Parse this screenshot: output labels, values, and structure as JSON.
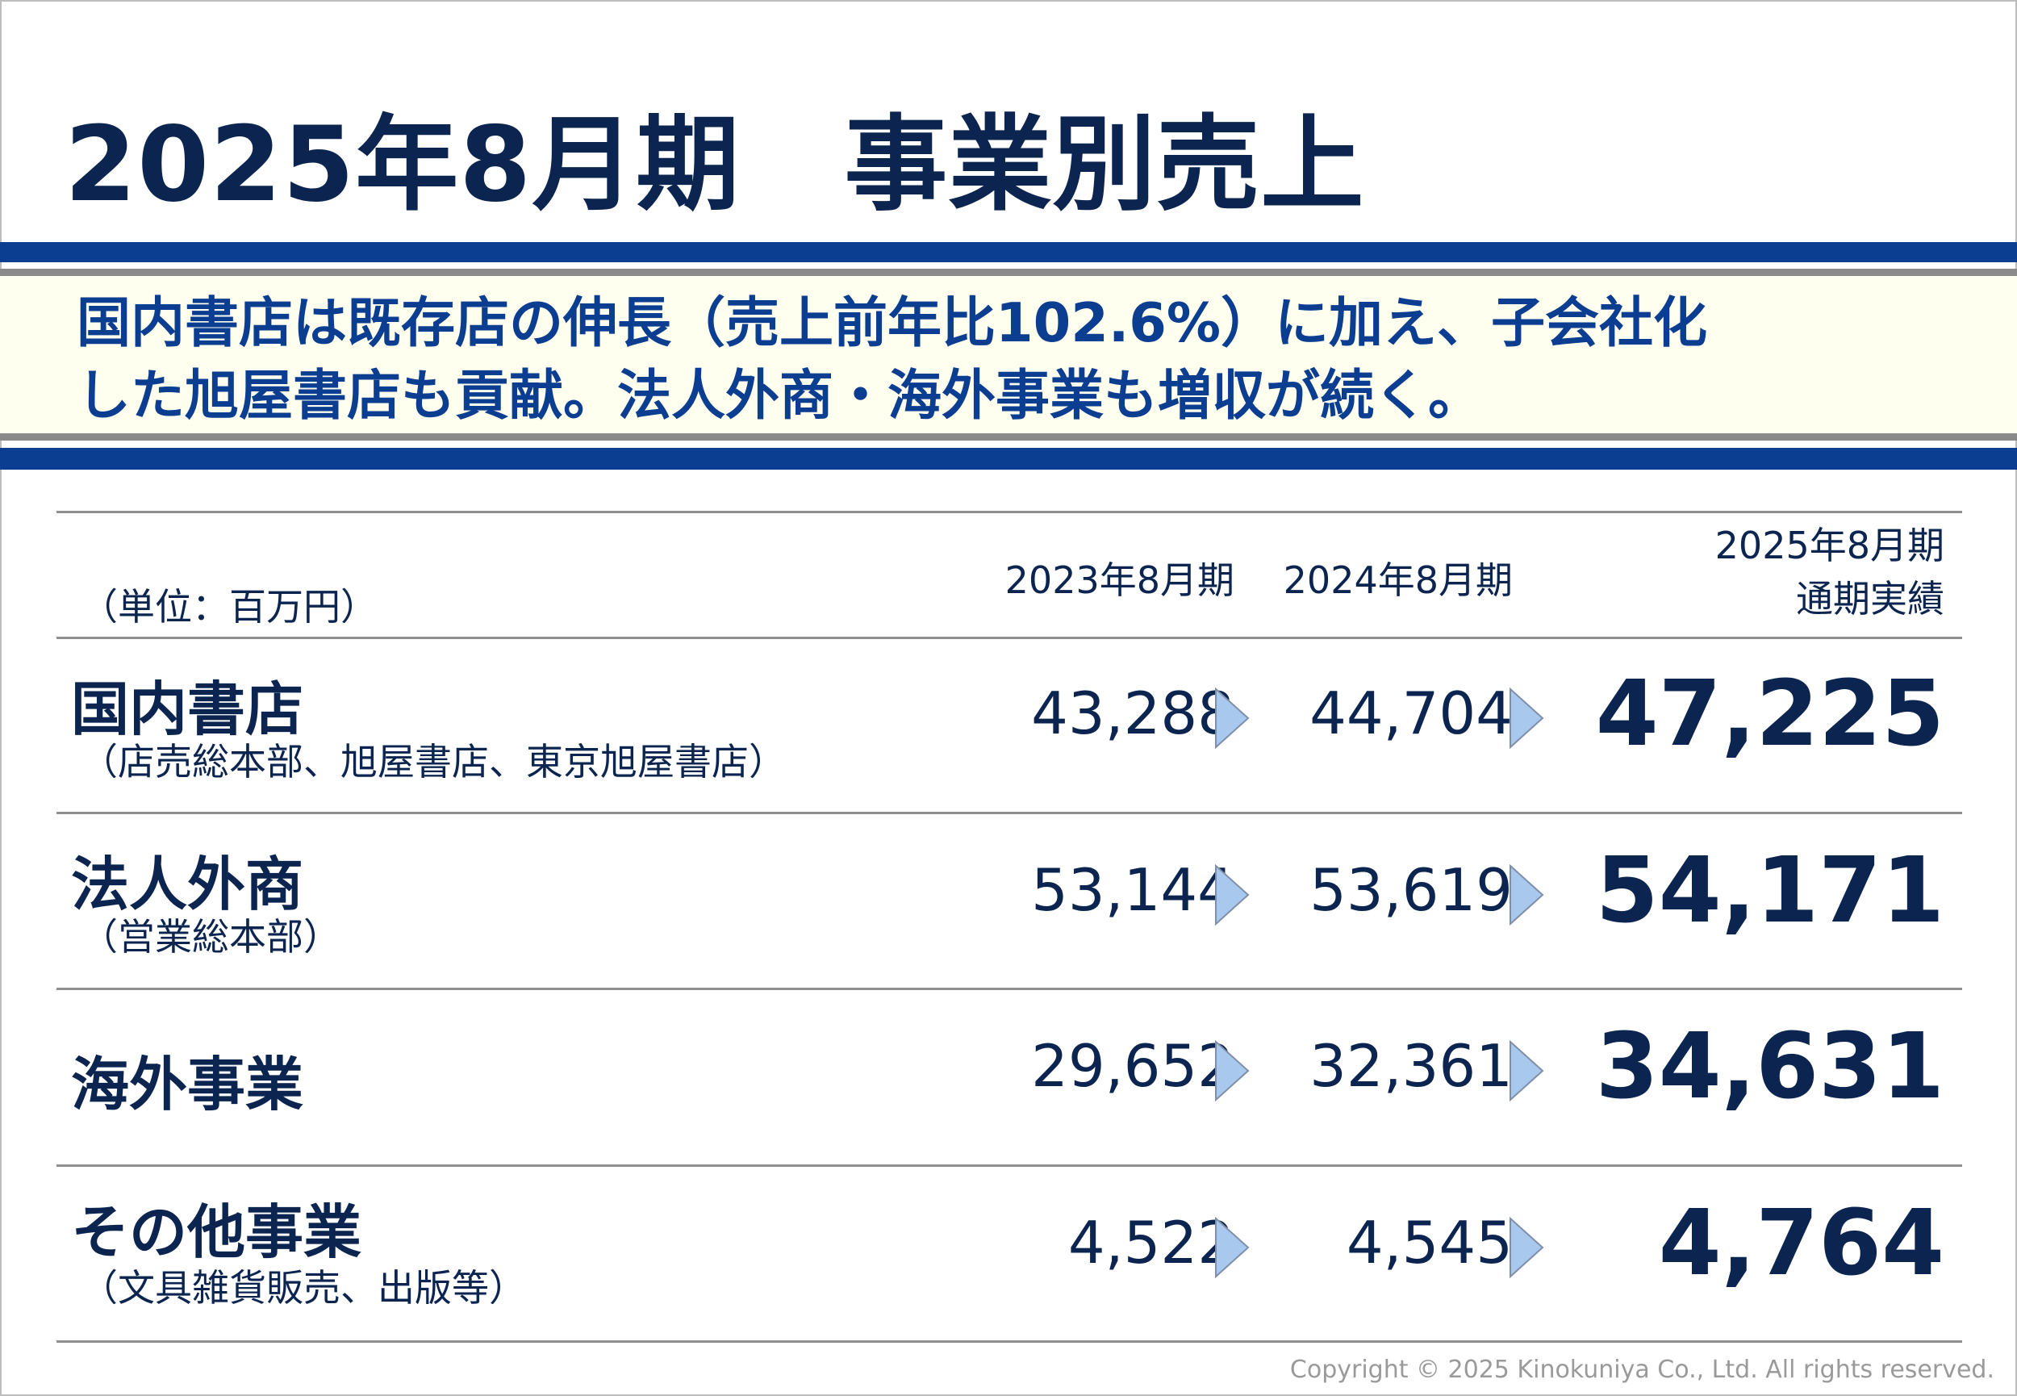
{
  "title": "2025年8月期　事業別売上",
  "summary": {
    "line1": "国内書店は既存店の伸長（売上前年比102.6%）に加え、子会社化",
    "line2": "した旭屋書店も貢献。法人外商・海外事業も増収が続く。"
  },
  "table": {
    "unit_label": "（単位：百万円）",
    "headers": {
      "fy2023": "2023年8月期",
      "fy2024": "2024年8月期",
      "fy2025_line1": "2025年8月期",
      "fy2025_line2": "通期実績"
    },
    "rows": [
      {
        "name": "国内書店",
        "sub": "（店売総本部、旭屋書店、東京旭屋書店）",
        "fy2023": "43,288",
        "fy2024": "44,704",
        "fy2025": "47,225"
      },
      {
        "name": "法人外商",
        "sub": "（営業総本部）",
        "fy2023": "53,144",
        "fy2024": "53,619",
        "fy2025": "54,171"
      },
      {
        "name": "海外事業",
        "sub": "",
        "fy2023": "29,652",
        "fy2024": "32,361",
        "fy2025": "34,631"
      },
      {
        "name": "その他事業",
        "sub": "（文具雑貨販売、出版等）",
        "fy2023": "4,522",
        "fy2024": "4,545",
        "fy2025": "4,764"
      }
    ]
  },
  "copyright": "Copyright © 2025 Kinokuniya Co., Ltd. All rights reserved.",
  "colors": {
    "navy_text": "#0c2550",
    "band_blue": "#0b3d91",
    "band_cream": "#fffff0",
    "arrow_fill": "#a9c8ee",
    "arrow_stroke": "#7f8fa8"
  },
  "icons": {
    "growth_arrow": "triangle-right-icon"
  }
}
